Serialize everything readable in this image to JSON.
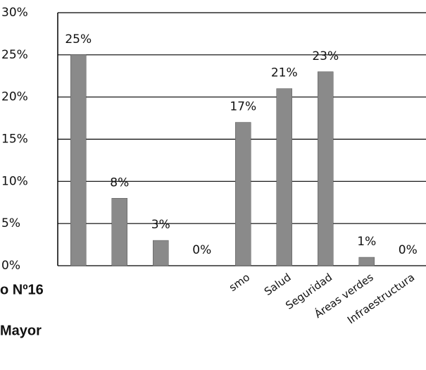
{
  "chart_data": {
    "type": "bar",
    "categories": [
      null,
      null,
      null,
      null,
      "smo",
      "Salud",
      "Seguridad",
      "Áreas verdes",
      "Infraestructura"
    ],
    "values": [
      25,
      8,
      3,
      0,
      17,
      21,
      23,
      1,
      0
    ],
    "value_labels": [
      "25%",
      "8%",
      "3%",
      "0%",
      "17%",
      "21%",
      "23%",
      "1%",
      "0%"
    ],
    "color": "#8a8a8a",
    "ylim": [
      0,
      30
    ],
    "yticks": [
      {
        "value": 0,
        "label": "0%"
      },
      {
        "value": 5,
        "label": "5%"
      },
      {
        "value": 10,
        "label": "10%"
      },
      {
        "value": 15,
        "label": "15%"
      },
      {
        "value": 20,
        "label": "20%"
      },
      {
        "value": 25,
        "label": "25%"
      },
      {
        "value": 30,
        "label": "30%"
      }
    ],
    "grid": true,
    "side_texts": [
      "o Nº16",
      "Mayor"
    ]
  }
}
